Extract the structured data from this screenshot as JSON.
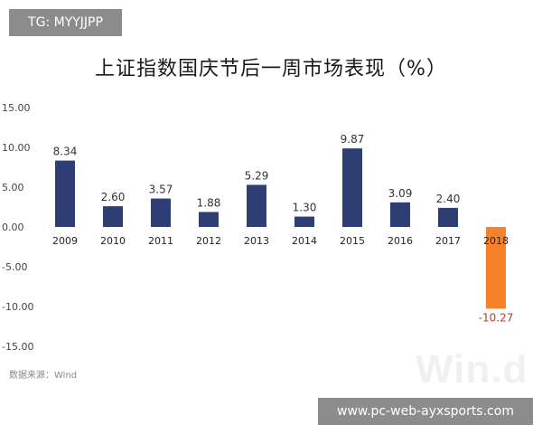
{
  "overlay": {
    "tag": "TG: MYYJJPP",
    "site": "www.pc-web-ayxsports.com"
  },
  "chart_data": {
    "type": "bar",
    "title": "上证指数国庆节后一周市场表现（%）",
    "source": "数据来源：Wind",
    "watermark": "Win.d",
    "categories": [
      "2009",
      "2010",
      "2011",
      "2012",
      "2013",
      "2014",
      "2015",
      "2016",
      "2017",
      "2018"
    ],
    "values": [
      8.34,
      2.6,
      3.57,
      1.88,
      5.29,
      1.3,
      9.87,
      3.09,
      2.4,
      -10.27
    ],
    "value_labels": [
      "8.34",
      "2.60",
      "3.57",
      "1.88",
      "5.29",
      "1.30",
      "9.87",
      "3.09",
      "2.40",
      "-10.27"
    ],
    "yticks": [
      "15.00",
      "10.00",
      "5.00",
      "0.00",
      "-5.00",
      "-10.00",
      "-15.00"
    ],
    "ylim": [
      -15,
      15
    ],
    "grid": false,
    "colors": {
      "bar": "#2e3d72",
      "highlight": "#f5822a",
      "negative_label": "#c0392b",
      "label": "#333333"
    },
    "highlight_index": 9
  }
}
